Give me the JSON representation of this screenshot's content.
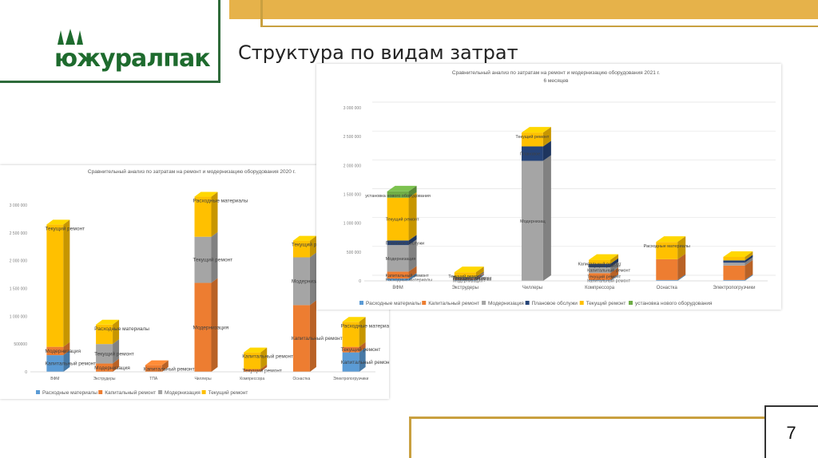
{
  "header": {
    "logo_text": "южуралпак",
    "title": "Структура по видам затрат"
  },
  "footer": {
    "page_number": "7"
  },
  "colors": {
    "brand_green": "#1e6b2e",
    "accent_gold": "#e6b24a"
  },
  "chart_data": [
    {
      "id": "chart2021",
      "type": "bar",
      "stacked": true,
      "three_d": true,
      "title": "Сравнительный анализ по затратам на ремонт и модернизацию оборудования 2021 г.",
      "subtitle": "6 месяцев",
      "yticks": [
        "0",
        "500 000",
        "1 000 000",
        "1 500 000",
        "2 000 000",
        "2 500 000",
        "3 000 000"
      ],
      "ylim": [
        0,
        3000000
      ],
      "grid": true,
      "legend_position": "bottom",
      "categories": [
        "ВФМ",
        "Экструдеры",
        "Чиллеры",
        "Компрессора",
        "Оснастка",
        "Электропогрузчики"
      ],
      "series": [
        {
          "name": "Расходные материалы",
          "color": "#5b9bd5",
          "values": [
            40000,
            20000,
            0,
            15000,
            15000,
            15000
          ]
        },
        {
          "name": "Капитальный ремонт",
          "color": "#ed7d31",
          "values": [
            120000,
            20000,
            0,
            120000,
            360000,
            250000
          ]
        },
        {
          "name": "Модернизация",
          "color": "#a5a5a5",
          "values": [
            460000,
            10000,
            2080000,
            100000,
            0,
            50000
          ]
        },
        {
          "name": "Плановое обслужи",
          "color": "#264478",
          "values": [
            80000,
            10000,
            250000,
            60000,
            0,
            40000
          ]
        },
        {
          "name": "Текущий ремонт",
          "color": "#ffc000",
          "values": [
            740000,
            90000,
            240000,
            70000,
            300000,
            60000
          ]
        },
        {
          "name": "установка нового оборудования",
          "color": "#70ad47",
          "values": [
            110000,
            0,
            0,
            0,
            0,
            0
          ]
        }
      ],
      "annotations": [
        "установка нового оборудования",
        "Текущий ремонт",
        "Плановое обслужи",
        "Модернизация",
        "Капитальный ремонт",
        "Расходные материалы",
        "Текущий ремонт",
        "Плановое обслужи",
        "Текущий ремонт",
        "Плановое обслужи",
        "Модернизация",
        "Текущий ремонт",
        "Плановое",
        "Модернизац",
        "Капитальный ремонт",
        "Текущий ремонт",
        "Капитальный ремонт",
        "Текущий ремонт",
        "Капитальный ремонт",
        "Расходные материалы"
      ]
    },
    {
      "id": "chart2020",
      "type": "bar",
      "stacked": true,
      "three_d": true,
      "title": "Сравнительный анализ по затратам на ремонт и модернизацию оборудования 2020 г.",
      "yticks": [
        "0",
        "500000",
        "1 000 000",
        "1 500 000",
        "2 000 000",
        "2 500 000",
        "3 000 000"
      ],
      "ylim": [
        0,
        3000000
      ],
      "grid": false,
      "legend_position": "bottom",
      "categories": [
        "ВФМ",
        "Экструдеры",
        "ТПА",
        "Чиллеры",
        "Компрессора",
        "Оснастка",
        "Электропогрузчики"
      ],
      "series": [
        {
          "name": "Расходные материалы",
          "color": "#5b9bd5",
          "values": [
            300000,
            0,
            0,
            0,
            0,
            0,
            350000
          ]
        },
        {
          "name": "Капитальный ремонт",
          "color": "#ed7d31",
          "values": [
            150000,
            150000,
            120000,
            1600000,
            50000,
            1200000,
            100000
          ]
        },
        {
          "name": "Модернизация",
          "color": "#a5a5a5",
          "values": [
            0,
            350000,
            0,
            830000,
            0,
            860000,
            0
          ]
        },
        {
          "name": "Текущий ремонт",
          "color": "#ffc000",
          "values": [
            2200000,
            350000,
            0,
            720000,
            300000,
            300000,
            450000
          ]
        }
      ],
      "annotations": [
        "Текущий ремонт",
        "Модернизация",
        "Капитальный ремонт",
        "Расходные материалы",
        "Текущий ремонт",
        "Модернизация",
        "Капитальный ремонт",
        "Расходные материалы",
        "Текущий ремонт",
        "Модернизация",
        "Капитальный ремонт",
        "Текущий ремонт",
        "Текущий ремонт",
        "Модернизация",
        "Капитальный ремонт",
        "Расходные материалы",
        "Текущий ремонт",
        "Капитальный ремонт"
      ]
    }
  ]
}
